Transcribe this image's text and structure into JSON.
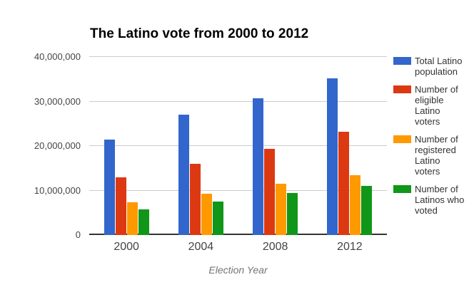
{
  "title": "The Latino vote from 2000 to 2012",
  "chart_data": {
    "type": "bar",
    "categories": [
      "2000",
      "2004",
      "2008",
      "2012"
    ],
    "series": [
      {
        "name": "Total Latino population",
        "color": "#3366CC",
        "values": [
          21500000,
          27100000,
          30800000,
          35200000
        ]
      },
      {
        "name": "Number of eligible Latino voters",
        "color": "#DC3912",
        "values": [
          13000000,
          16000000,
          19400000,
          23200000
        ]
      },
      {
        "name": "Number of registered Latino voters",
        "color": "#FF9900",
        "values": [
          7400000,
          9300000,
          11500000,
          13500000
        ]
      },
      {
        "name": "Number of Latinos who voted",
        "color": "#109618",
        "values": [
          5700000,
          7500000,
          9500000,
          11000000
        ]
      }
    ],
    "xlabel": "Election Year",
    "ylabel": "",
    "ylim": [
      0,
      40000000
    ],
    "ytick_interval": 10000000,
    "yticks": [
      "0",
      "10,000,000",
      "20,000,000",
      "30,000,000",
      "40,000,000"
    ],
    "grid": true,
    "legend_position": "right"
  },
  "colors": {
    "background": "#ffffff",
    "gridline": "#cccccc",
    "axis_line": "#333333",
    "ytick_label": "#444444",
    "xtick_label": "#444444",
    "axis_title": "#757575",
    "title_text": "#000000",
    "legend_text": "#333333"
  }
}
